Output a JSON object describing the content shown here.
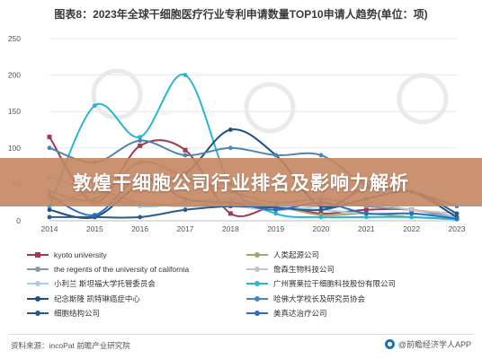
{
  "page": {
    "title": "图表8：2023年全球干细胞医疗行业专利申请数量TOP10申请人趋势(单位：项)",
    "banner_text": "敦煌干细胞公司行业排名及影响力解析",
    "source": "资料来源：incoPat 前瞻产业研究院",
    "footer_brand": "@前瞻经济学人APP"
  },
  "chart_data": {
    "type": "line",
    "title": "图表8：2023年全球干细胞医疗行业专利申请数量TOP10申请人趋势(单位：项)",
    "xlabel": "",
    "ylabel": "",
    "x": [
      "2014",
      "2015",
      "2016",
      "2017",
      "2018",
      "2019",
      "2020",
      "2021",
      "2022",
      "2023"
    ],
    "x_ticks": [
      "2014",
      "2015",
      "2016",
      "2017",
      "2018",
      "2019",
      "2020",
      "2021",
      "2022",
      "2023"
    ],
    "ylim": [
      0,
      250
    ],
    "y_ticks": [
      "0",
      "50",
      "100",
      "150",
      "200",
      "250"
    ],
    "grid": true,
    "legend_position": "bottom",
    "series": [
      {
        "name": "kyoto university",
        "color": "#a03a52",
        "marker": "square",
        "values": [
          115,
          25,
          103,
          97,
          10,
          20,
          10,
          15,
          15,
          3
        ]
      },
      {
        "name": "人类起源公司",
        "color": "#a8a46c",
        "marker": "circle",
        "values": [
          20,
          40,
          25,
          20,
          25,
          20,
          8,
          10,
          5,
          2
        ]
      },
      {
        "name": "the regents of the university of california",
        "color": "#8b96a8",
        "marker": "circle",
        "values": [
          40,
          30,
          80,
          60,
          40,
          25,
          30,
          20,
          15,
          5
        ]
      },
      {
        "name": "詹森生物科技公司",
        "color": "#c4c4c4",
        "marker": "circle",
        "values": [
          30,
          25,
          25,
          20,
          20,
          15,
          20,
          25,
          15,
          10
        ]
      },
      {
        "name": "小利兰 斯坦福大学托管委员会",
        "color": "#a7cde8",
        "marker": "circle",
        "values": [
          60,
          40,
          20,
          25,
          30,
          20,
          15,
          10,
          10,
          5
        ]
      },
      {
        "name": "广州赛莱拉干细胞科技股份有限公司",
        "color": "#27b6d6",
        "marker": "circle",
        "values": [
          20,
          158,
          115,
          200,
          50,
          10,
          5,
          5,
          5,
          2
        ]
      },
      {
        "name": "纪念斯隆 凯特琳癌症中心",
        "color": "#1c4f86",
        "marker": "circle",
        "values": [
          15,
          5,
          50,
          65,
          125,
          90,
          20,
          45,
          40,
          5
        ]
      },
      {
        "name": "哈佛大学校长及研究员协会",
        "color": "#4a86b4",
        "marker": "circle",
        "values": [
          100,
          80,
          110,
          90,
          100,
          90,
          90,
          50,
          40,
          20
        ]
      },
      {
        "name": "细胞结构公司",
        "color": "#2d5b88",
        "marker": "circle",
        "values": [
          5,
          5,
          5,
          15,
          20,
          18,
          15,
          30,
          40,
          10
        ]
      },
      {
        "name": "美真达治疗公司",
        "color": "#2b6ec0",
        "marker": "circle",
        "values": [
          35,
          8,
          60,
          30,
          25,
          15,
          25,
          10,
          10,
          3
        ]
      }
    ]
  }
}
